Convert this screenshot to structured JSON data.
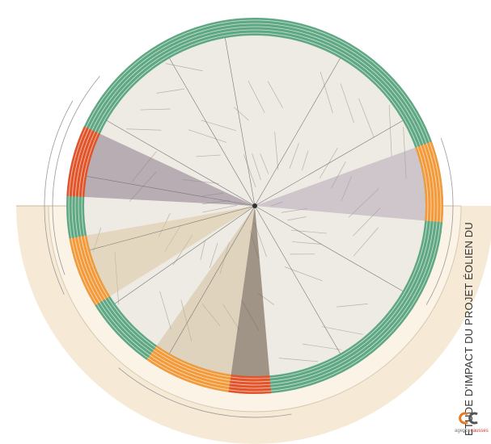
{
  "header": {
    "title": "ÉTUDE D'IMPACT DU PROJET ÉOLIEN DU"
  },
  "logo": {
    "prefix": "agence",
    "suffix": "causses"
  }
}
